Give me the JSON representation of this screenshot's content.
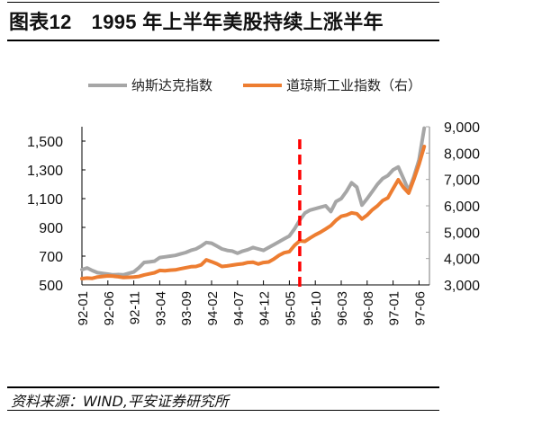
{
  "header": {
    "figure_label": "图表12",
    "title": "1995 年上半年美股持续上涨半年"
  },
  "footer": {
    "source": "资料来源：WIND,平安证券研究所"
  },
  "colors": {
    "nasdaq": "#a6a6a6",
    "dow": "#ed7d31",
    "marker": "#ff0000",
    "axis": "#000000",
    "right_axis": "#a6a6a6"
  },
  "chart_data": {
    "type": "line",
    "title": "1995 年上半年美股持续上涨半年",
    "xlabel": "",
    "ylabel_left": "",
    "ylabel_right": "",
    "legend_position": "top",
    "grid": false,
    "x_tick_labels": [
      "92-01",
      "92-06",
      "92-11",
      "93-04",
      "93-09",
      "94-02",
      "94-07",
      "94-12",
      "95-05",
      "95-10",
      "96-03",
      "96-08",
      "97-01",
      "97-06"
    ],
    "y_left": {
      "ticks": [
        "500",
        "700",
        "900",
        "1,100",
        "1,300",
        "1,500"
      ],
      "range": [
        500,
        1600
      ]
    },
    "y_right": {
      "ticks": [
        "3,000",
        "4,000",
        "5,000",
        "6,000",
        "7,000",
        "8,000",
        "9,000"
      ],
      "range": [
        3000,
        9000
      ]
    },
    "annotation": {
      "type": "vertical-dashed-line",
      "x": "95-07",
      "label": ""
    },
    "x": [
      "92-01",
      "92-02",
      "92-03",
      "92-04",
      "92-05",
      "92-06",
      "92-07",
      "92-08",
      "92-09",
      "92-10",
      "92-11",
      "92-12",
      "93-01",
      "93-02",
      "93-03",
      "93-04",
      "93-05",
      "93-06",
      "93-07",
      "93-08",
      "93-09",
      "93-10",
      "93-11",
      "93-12",
      "94-01",
      "94-02",
      "94-03",
      "94-04",
      "94-05",
      "94-06",
      "94-07",
      "94-08",
      "94-09",
      "94-10",
      "94-11",
      "94-12",
      "95-01",
      "95-02",
      "95-03",
      "95-04",
      "95-05",
      "95-06",
      "95-07",
      "95-08",
      "95-09",
      "95-10",
      "95-11",
      "95-12",
      "96-01",
      "96-02",
      "96-03",
      "96-04",
      "96-05",
      "96-06",
      "96-07",
      "96-08",
      "96-09",
      "96-10",
      "96-11",
      "96-12",
      "97-01",
      "97-02",
      "97-03",
      "97-04",
      "97-05",
      "97-06",
      "97-07"
    ],
    "series": [
      {
        "name": "纳斯达克指数",
        "axis": "left",
        "values": [
          606,
          618,
          600,
          585,
          580,
          575,
          570,
          572,
          570,
          580,
          590,
          620,
          656,
          660,
          665,
          690,
          695,
          700,
          705,
          715,
          725,
          740,
          750,
          770,
          795,
          790,
          770,
          750,
          740,
          735,
          720,
          735,
          745,
          760,
          750,
          740,
          760,
          780,
          800,
          820,
          840,
          890,
          950,
          1000,
          1020,
          1030,
          1040,
          1050,
          1010,
          1080,
          1100,
          1150,
          1210,
          1180,
          1055,
          1100,
          1150,
          1200,
          1240,
          1260,
          1300,
          1320,
          1240,
          1155,
          1250,
          1370,
          1590
        ]
      },
      {
        "name": "道琼斯工业指数（右）",
        "axis": "right",
        "values": [
          3240,
          3260,
          3250,
          3300,
          3320,
          3340,
          3330,
          3310,
          3280,
          3290,
          3300,
          3320,
          3380,
          3420,
          3460,
          3550,
          3540,
          3560,
          3570,
          3610,
          3650,
          3690,
          3700,
          3760,
          3950,
          3880,
          3800,
          3700,
          3720,
          3750,
          3780,
          3800,
          3850,
          3860,
          3790,
          3850,
          3870,
          3980,
          4120,
          4220,
          4260,
          4500,
          4670,
          4650,
          4780,
          4900,
          5000,
          5120,
          5250,
          5450,
          5600,
          5650,
          5730,
          5700,
          5500,
          5650,
          5850,
          6000,
          6200,
          6300,
          6650,
          6990,
          6700,
          6480,
          7000,
          7570,
          8250
        ]
      }
    ]
  }
}
